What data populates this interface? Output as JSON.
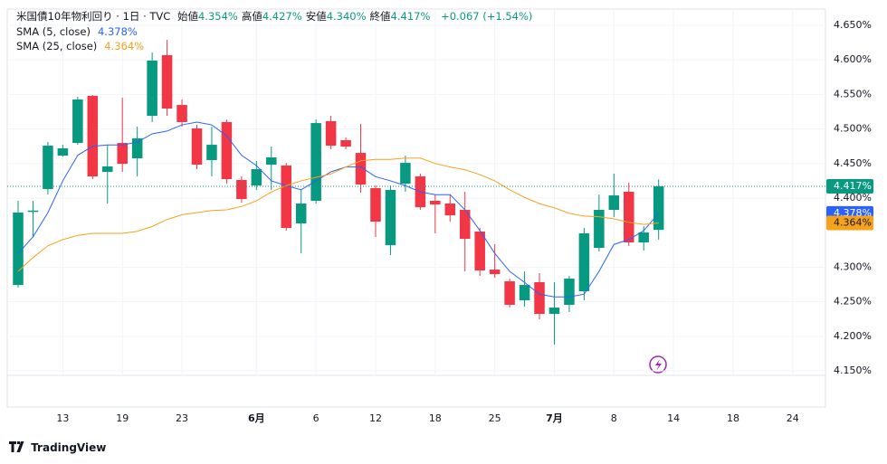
{
  "header": {
    "title": "米国債10年物利回り · 1日 · TVC",
    "fields": [
      {
        "label": "始値",
        "value": "4.354%"
      },
      {
        "label": "高値",
        "value": "4.427%"
      },
      {
        "label": "安値",
        "value": "4.340%"
      },
      {
        "label": "終値",
        "value": "4.417%"
      }
    ],
    "change": "+0.067 (+1.54%)"
  },
  "footer": {
    "brand": "TradingView"
  },
  "chart_data": {
    "type": "candlestick",
    "up_color": "#089981",
    "down_color": "#f23645",
    "open": [
      4.2743,
      4.38,
      4.4131,
      4.4615,
      4.4798,
      4.5479,
      4.438,
      4.4798,
      4.4576,
      4.5191,
      4.6068,
      4.5348,
      4.5008,
      4.455,
      4.51,
      4.4262,
      4.4183,
      4.4484,
      4.4471,
      4.3634,
      4.3961,
      4.5113,
      4.4838,
      4.4654,
      4.4144,
      4.3319,
      4.4209,
      4.4314,
      4.3961,
      4.3922,
      4.383,
      4.3516,
      4.2966,
      4.2796,
      4.2521,
      4.2783,
      4.2325,
      4.2456,
      4.2652,
      4.328,
      4.383,
      4.4092,
      4.3359,
      4.354
    ],
    "high": [
      4.3961,
      4.396,
      4.4812,
      4.4772,
      4.5466,
      4.5492,
      4.4772,
      4.5453,
      4.5034,
      4.6107,
      4.6291,
      4.5427,
      4.506,
      4.5034,
      4.5139,
      4.4314,
      4.4537,
      4.4746,
      4.451,
      4.4118,
      4.5139,
      4.5191,
      4.4877,
      4.5073,
      4.4183,
      4.4183,
      4.4615,
      4.4354,
      4.4052,
      4.4052,
      4.4092,
      4.3568,
      4.3333,
      4.2835,
      4.294,
      4.2914,
      4.2783,
      4.2874,
      4.3568,
      4.4052,
      4.4354,
      4.4223,
      4.3594,
      4.427
    ],
    "low": [
      4.2704,
      4.344,
      4.4052,
      4.4602,
      4.4772,
      4.4275,
      4.3922,
      4.438,
      4.4314,
      4.51,
      4.5191,
      4.5034,
      4.4419,
      4.4314,
      4.4209,
      4.3935,
      4.4118,
      4.4118,
      4.3529,
      4.3202,
      4.3922,
      4.4707,
      4.4707,
      4.4079,
      4.3437,
      4.3175,
      4.4092,
      4.383,
      4.349,
      4.366,
      4.294,
      4.2874,
      4.2848,
      4.2416,
      4.2429,
      4.2246,
      4.188,
      4.2351,
      4.2521,
      4.3228,
      4.3725,
      4.3307,
      4.3241,
      4.34
    ],
    "close": [
      4.3791,
      4.382,
      4.4759,
      4.472,
      4.5427,
      4.4314,
      4.4458,
      4.4497,
      4.4864,
      4.599,
      4.5296,
      4.51,
      4.4484,
      4.4772,
      4.4275,
      4.3987,
      4.4419,
      4.4589,
      4.3568,
      4.3922,
      4.5086,
      4.4759,
      4.4746,
      4.4196,
      4.366,
      4.4118,
      4.451,
      4.3869,
      4.3908,
      4.3751,
      4.3411,
      4.2953,
      4.29,
      4.2456,
      4.2743,
      4.2325,
      4.2416,
      4.2835,
      4.349,
      4.383,
      4.4039,
      4.3359,
      4.3503,
      4.417
    ],
    "close_label": "4.417%",
    "lines": [
      {
        "name": "SMA (5, close)",
        "color": "#2962ff",
        "last_label": "4.378%",
        "values": [
          4.32,
          4.344,
          4.379,
          4.425,
          4.462,
          4.475,
          4.477,
          4.477,
          4.481,
          4.493,
          4.497,
          4.506,
          4.51,
          4.506,
          4.49,
          4.462,
          4.447,
          4.425,
          4.418,
          4.412,
          4.425,
          4.438,
          4.445,
          4.445,
          4.431,
          4.425,
          4.418,
          4.409,
          4.405,
          4.405,
          4.383,
          4.353,
          4.32,
          4.294,
          4.278,
          4.261,
          4.257,
          4.257,
          4.261,
          4.294,
          4.333,
          4.34,
          4.353,
          4.378
        ]
      },
      {
        "name": "SMA (25, close)",
        "color": "#f7a21b",
        "last_label": "4.364%",
        "values": [
          4.294,
          4.314,
          4.331,
          4.34,
          4.346,
          4.349,
          4.349,
          4.349,
          4.352,
          4.359,
          4.369,
          4.376,
          4.379,
          4.382,
          4.383,
          4.388,
          4.396,
          4.409,
          4.418,
          4.425,
          4.43,
          4.435,
          4.445,
          4.454,
          4.456,
          4.456,
          4.458,
          4.458,
          4.45,
          4.445,
          4.441,
          4.434,
          4.425,
          4.412,
          4.401,
          4.392,
          4.386,
          4.378,
          4.374,
          4.373,
          4.37,
          4.365,
          4.362,
          4.364
        ]
      }
    ],
    "xlim": [
      -0.73,
      54.2
    ],
    "xticks": [
      {
        "value": 3,
        "label": "13"
      },
      {
        "value": 7,
        "label": "19"
      },
      {
        "value": 11,
        "label": "23"
      },
      {
        "value": 16,
        "label": "6月"
      },
      {
        "value": 20,
        "label": "6"
      },
      {
        "value": 24,
        "label": "12"
      },
      {
        "value": 28,
        "label": "18"
      },
      {
        "value": 32,
        "label": "25"
      },
      {
        "value": 36,
        "label": "7月"
      },
      {
        "value": 40,
        "label": "8"
      },
      {
        "value": 44,
        "label": "14"
      },
      {
        "value": 48,
        "label": "18"
      },
      {
        "value": 52,
        "label": "24"
      }
    ],
    "ylim": [
      4.1435,
      4.6736
    ],
    "yticks": [
      {
        "value": 4.15,
        "label": "4.150%"
      },
      {
        "value": 4.2,
        "label": "4.200%"
      },
      {
        "value": 4.25,
        "label": "4.250%"
      },
      {
        "value": 4.3,
        "label": "4.300%"
      },
      {
        "value": 4.4,
        "label": "4.400%"
      },
      {
        "value": 4.45,
        "label": "4.450%"
      },
      {
        "value": 4.5,
        "label": "4.500%"
      },
      {
        "value": 4.55,
        "label": "4.550%"
      },
      {
        "value": 4.6,
        "label": "4.600%"
      },
      {
        "value": 4.65,
        "label": "4.650%"
      }
    ],
    "grid": true
  }
}
